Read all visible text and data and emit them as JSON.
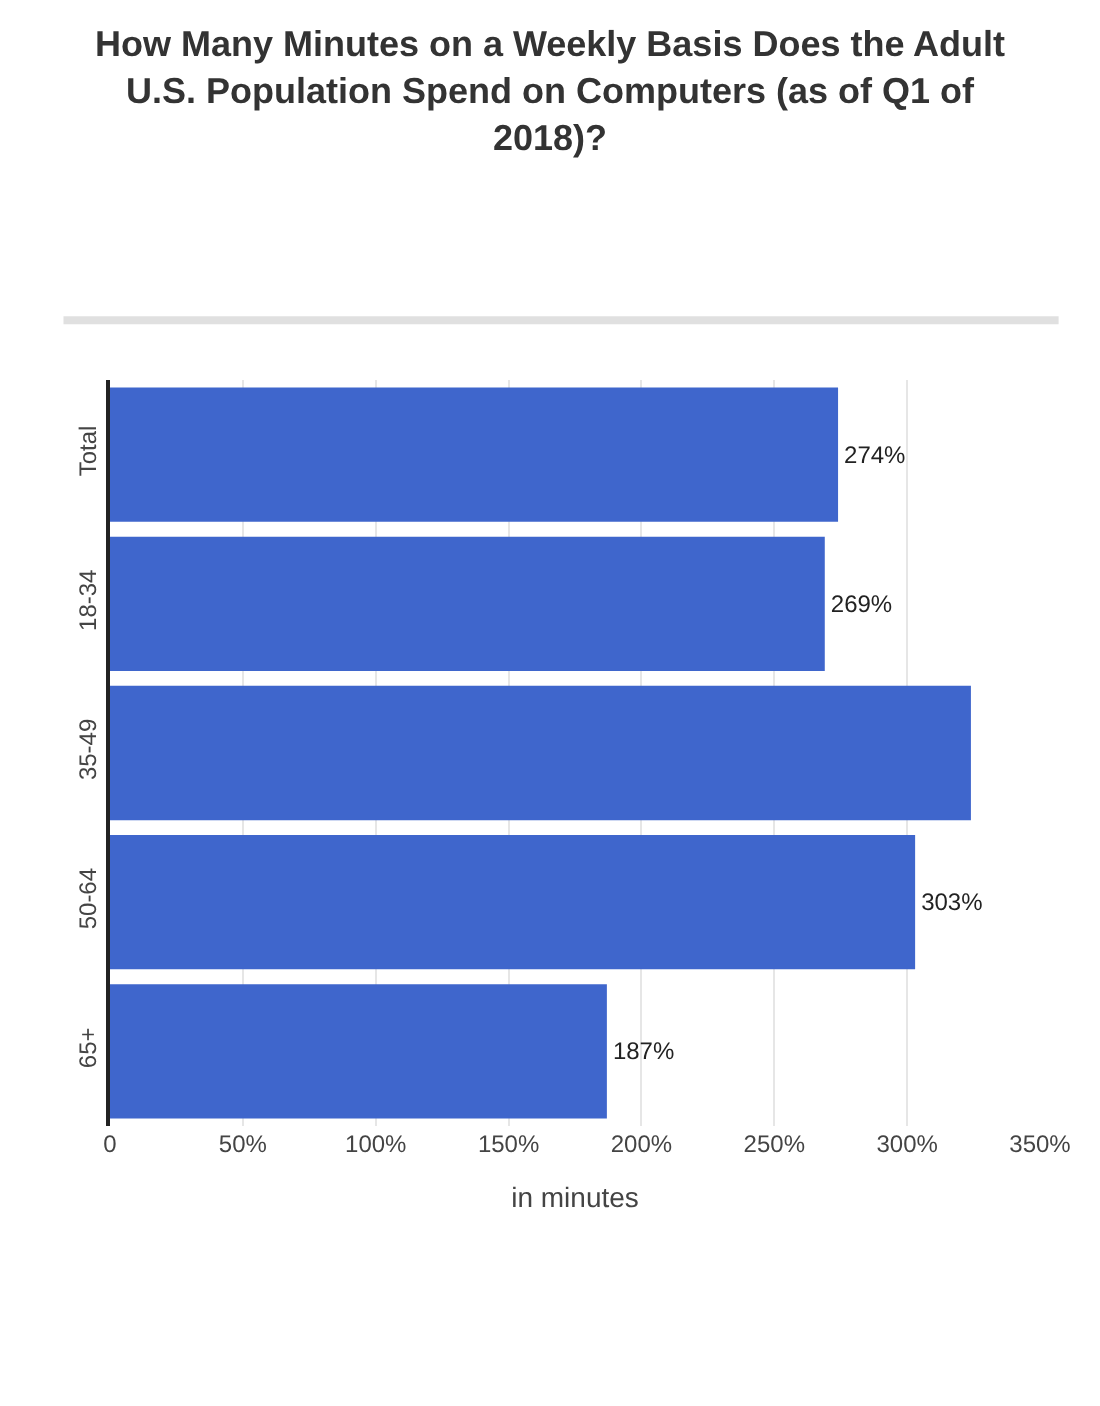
{
  "chart_data": {
    "type": "bar",
    "orientation": "horizontal",
    "title": "How Many Minutes on a Weekly Basis Does the Adult U.S. Population Spend on Computers (as of Q1 of 2018)?",
    "xlabel": "in minutes",
    "categories": [
      "Total",
      "18-34",
      "35-49",
      "50-64",
      "65+"
    ],
    "values": [
      274,
      269,
      324,
      303,
      187
    ],
    "value_labels": [
      "274%",
      "269%",
      null,
      "303%",
      "187%"
    ],
    "color": "#3f66cc",
    "xlim": [
      0,
      350
    ],
    "xticks": [
      0,
      {
        "value": 50,
        "label": "50%"
      },
      {
        "value": 100,
        "label": "100%"
      },
      {
        "value": 150,
        "label": "150%"
      },
      {
        "value": 200,
        "label": "200%"
      },
      {
        "value": 250,
        "label": "250%"
      },
      {
        "value": 300,
        "label": "300%"
      },
      {
        "value": 350,
        "label": "350%"
      }
    ],
    "grid": "x",
    "legend": false
  }
}
